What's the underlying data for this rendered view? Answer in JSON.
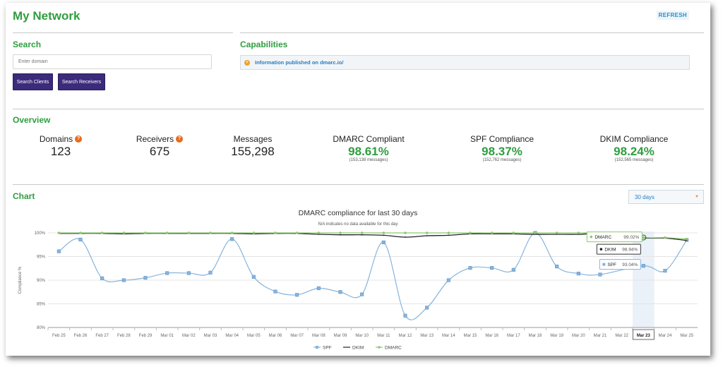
{
  "header": {
    "title": "My Network",
    "refresh_label": "REFRESH"
  },
  "search": {
    "title": "Search",
    "placeholder": "Enter domain",
    "value": "",
    "search_clients_label": "Search Clients",
    "search_receivers_label": "Search Receivers"
  },
  "capabilities": {
    "title": "Capabilities",
    "icon": "plus-circle-icon",
    "link_text": "Information published on dmarc.io/"
  },
  "overview": {
    "title": "Overview",
    "domains": {
      "label": "Domains",
      "value": "123"
    },
    "receivers": {
      "label": "Receivers",
      "value": "675"
    },
    "messages": {
      "label": "Messages",
      "value": "155,298"
    },
    "dmarc": {
      "label": "DMARC Compliant",
      "value": "98.61%",
      "sub": "(153,138 messages)"
    },
    "spf": {
      "label": "SPF Compliance",
      "value": "98.37%",
      "sub": "(152,762 messages)"
    },
    "dkim": {
      "label": "DKIM Compliance",
      "value": "98.24%",
      "sub": "(152,565 messages)"
    }
  },
  "chart_section": {
    "title": "Chart",
    "range_value": "30 days"
  },
  "colors": {
    "green": "#2e9e3f",
    "spf": "#86b4dc",
    "dkim": "#222222",
    "dmarc": "#8cc870",
    "purple": "#3c2a7a"
  },
  "chart_data": {
    "type": "line",
    "title": "DMARC compliance for last 30 days",
    "subtitle": "N/A indicates no data available for this day",
    "ylabel": "Compliance %",
    "ylim": [
      80,
      100
    ],
    "yticks": [
      "80%",
      "85%",
      "90%",
      "95%",
      "100%"
    ],
    "categories": [
      "Feb 25",
      "Feb 26",
      "Feb 27",
      "Feb 28",
      "Feb 29",
      "Mar 01",
      "Mar 02",
      "Mar 03",
      "Mar 04",
      "Mar 05",
      "Mar 06",
      "Mar 07",
      "Mar 08",
      "Mar 09",
      "Mar 10",
      "Mar 11",
      "Mar 12",
      "Mar 13",
      "Mar 14",
      "Mar 15",
      "Mar 16",
      "Mar 17",
      "Mar 18",
      "Mar 19",
      "Mar 20",
      "Mar 21",
      "Mar 22",
      "Mar 23",
      "Mar 24",
      "Mar 25"
    ],
    "series": [
      {
        "name": "SPF",
        "values": [
          96.1,
          98.6,
          90.4,
          90.0,
          90.5,
          91.5,
          91.5,
          91.6,
          98.7,
          90.7,
          87.6,
          86.9,
          88.3,
          87.5,
          87.0,
          98.0,
          82.5,
          84.2,
          90.0,
          92.6,
          92.6,
          92.2,
          100.0,
          92.9,
          91.4,
          91.2,
          null,
          93.04,
          92.0,
          98.5
        ]
      },
      {
        "name": "DKIM",
        "values": [
          99.9,
          99.9,
          99.9,
          99.8,
          99.9,
          99.9,
          99.9,
          99.9,
          99.9,
          99.8,
          99.9,
          99.9,
          99.7,
          99.6,
          99.6,
          99.5,
          99.1,
          99.4,
          99.5,
          99.8,
          99.8,
          99.8,
          99.7,
          99.7,
          99.7,
          99.8,
          null,
          98.94,
          98.9,
          98.4
        ]
      },
      {
        "name": "DMARC",
        "values": [
          100,
          100,
          100,
          100,
          100,
          100,
          100,
          100,
          100,
          100,
          100,
          100,
          100,
          100,
          100,
          100,
          100,
          100,
          100,
          100,
          100,
          100,
          100,
          100,
          100,
          100,
          null,
          99.02,
          99.0,
          98.7
        ]
      }
    ],
    "highlight": "Mar 23",
    "tooltip": {
      "dmarc": "99.02%",
      "dkim": "98.94%",
      "spf": "93.04%"
    },
    "legend": [
      "SPF",
      "DKIM",
      "DMARC"
    ],
    "legend_position": "bottom"
  }
}
